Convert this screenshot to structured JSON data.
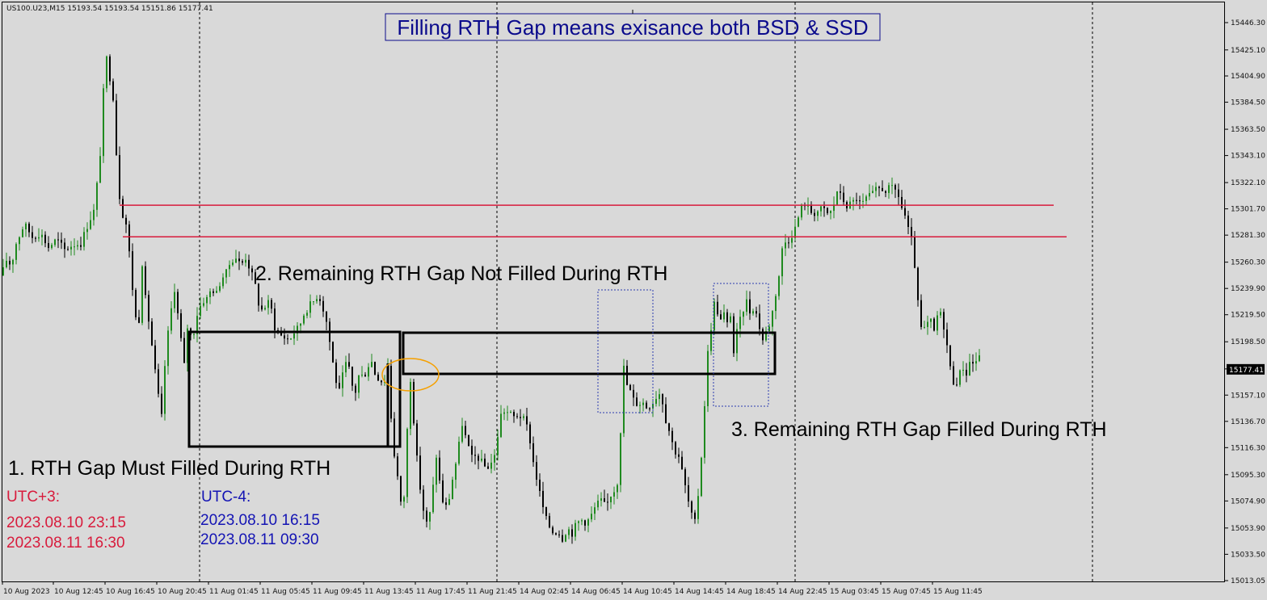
{
  "header": {
    "symbol_info": "US100.U23,M15  15193.54 15193.54 15151.86 15177.41"
  },
  "annotations": {
    "title": "Filling RTH Gap means exisance both BSD & SSD",
    "label1": "1. RTH Gap Must Filled During RTH",
    "label2": "2. Remaining RTH Gap Not Filled During RTH",
    "label3": "3. Remaining RTH Gap Filled During RTH"
  },
  "timezones": {
    "utc_plus3": {
      "label": "UTC+3:",
      "line1": "2023.08.10 23:15",
      "line2": "2023.08.11 16:30"
    },
    "utc_minus4": {
      "label": "UTC-4:",
      "line1": "2023.08.10 16:15",
      "line2": "2023.08.11 09:30"
    }
  },
  "colors": {
    "background": "#d9d9d9",
    "bull": "#1f8a1f",
    "bear": "#000000",
    "level_line": "#d81b3c",
    "title_text": "#0a0a8c",
    "utc_plus3": "#d81b3c",
    "utc_minus4": "#1414b4",
    "ellipse": "#f5a000",
    "dashed_box": "#2b3bb0"
  },
  "chart_data": {
    "type": "candlestick",
    "ylim": [
      15013.05,
      15446.3
    ],
    "y_ticks": [
      "15446.30",
      "15425.10",
      "15404.90",
      "15384.50",
      "15363.50",
      "15343.10",
      "15322.10",
      "15301.70",
      "15281.30",
      "15260.30",
      "15239.90",
      "15219.50",
      "15198.50",
      "15177.41",
      "15157.10",
      "15136.70",
      "15116.30",
      "15095.30",
      "15074.90",
      "15053.90",
      "15033.50",
      "15013.05"
    ],
    "x_ticks": [
      "10 Aug 2023",
      "10 Aug 12:45",
      "10 Aug 16:45",
      "10 Aug 20:45",
      "11 Aug 01:45",
      "11 Aug 05:45",
      "11 Aug 09:45",
      "11 Aug 13:45",
      "11 Aug 17:45",
      "11 Aug 21:45",
      "14 Aug 02:45",
      "14 Aug 06:45",
      "14 Aug 10:45",
      "14 Aug 14:45",
      "14 Aug 18:45",
      "14 Aug 22:45",
      "15 Aug 03:45",
      "15 Aug 07:45",
      "15 Aug 11:45"
    ],
    "current_price": "15177.41",
    "price_path": [
      [
        2,
        15250
      ],
      [
        8,
        15262
      ],
      [
        14,
        15258
      ],
      [
        20,
        15275
      ],
      [
        30,
        15290
      ],
      [
        40,
        15280
      ],
      [
        50,
        15283
      ],
      [
        60,
        15272
      ],
      [
        70,
        15278
      ],
      [
        80,
        15270
      ],
      [
        90,
        15274
      ],
      [
        100,
        15275
      ],
      [
        110,
        15292
      ],
      [
        116,
        15300
      ],
      [
        122,
        15330
      ],
      [
        126,
        15360
      ],
      [
        130,
        15425
      ],
      [
        133,
        15415
      ],
      [
        137,
        15400
      ],
      [
        141,
        15385
      ],
      [
        144,
        15345
      ],
      [
        147,
        15320
      ],
      [
        150,
        15295
      ],
      [
        154,
        15300
      ],
      [
        158,
        15280
      ],
      [
        162,
        15255
      ],
      [
        166,
        15225
      ],
      [
        171,
        15205
      ],
      [
        176,
        15260
      ],
      [
        181,
        15225
      ],
      [
        185,
        15212
      ],
      [
        190,
        15185
      ],
      [
        195,
        15160
      ],
      [
        200,
        15140
      ],
      [
        205,
        15190
      ],
      [
        211,
        15220
      ],
      [
        216,
        15240
      ],
      [
        222,
        15210
      ],
      [
        228,
        15180
      ],
      [
        232,
        15210
      ],
      [
        238,
        15200
      ],
      [
        244,
        15220
      ],
      [
        250,
        15230
      ],
      [
        256,
        15232
      ],
      [
        262,
        15240
      ],
      [
        268,
        15236
      ],
      [
        274,
        15248
      ],
      [
        280,
        15252
      ],
      [
        286,
        15262
      ],
      [
        292,
        15264
      ],
      [
        298,
        15258
      ],
      [
        304,
        15264
      ],
      [
        310,
        15254
      ],
      [
        316,
        15242
      ],
      [
        322,
        15222
      ],
      [
        328,
        15226
      ],
      [
        334,
        15230
      ],
      [
        340,
        15210
      ],
      [
        346,
        15204
      ],
      [
        352,
        15202
      ],
      [
        358,
        15200
      ],
      [
        364,
        15206
      ],
      [
        370,
        15210
      ],
      [
        376,
        15220
      ],
      [
        382,
        15226
      ],
      [
        388,
        15230
      ],
      [
        394,
        15236
      ],
      [
        400,
        15224
      ],
      [
        405,
        15212
      ],
      [
        410,
        15190
      ],
      [
        415,
        15170
      ],
      [
        420,
        15160
      ],
      [
        425,
        15175
      ],
      [
        430,
        15185
      ],
      [
        435,
        15165
      ],
      [
        440,
        15160
      ],
      [
        445,
        15175
      ],
      [
        450,
        15170
      ],
      [
        455,
        15180
      ],
      [
        460,
        15183
      ],
      [
        465,
        15172
      ],
      [
        470,
        15170
      ],
      [
        475,
        15166
      ],
      [
        480,
        15180
      ],
      [
        484,
        15140
      ],
      [
        487,
        15115
      ],
      [
        491,
        15100
      ],
      [
        495,
        15075
      ],
      [
        499,
        15065
      ],
      [
        503,
        15120
      ],
      [
        508,
        15170
      ],
      [
        513,
        15130
      ],
      [
        517,
        15100
      ],
      [
        521,
        15080
      ],
      [
        526,
        15060
      ],
      [
        530,
        15055
      ],
      [
        535,
        15080
      ],
      [
        540,
        15110
      ],
      [
        545,
        15085
      ],
      [
        550,
        15068
      ],
      [
        555,
        15074
      ],
      [
        560,
        15092
      ],
      [
        566,
        15110
      ],
      [
        572,
        15135
      ],
      [
        578,
        15120
      ],
      [
        584,
        15108
      ],
      [
        590,
        15110
      ],
      [
        596,
        15105
      ],
      [
        602,
        15100
      ],
      [
        608,
        15105
      ],
      [
        614,
        15112
      ],
      [
        618,
        15140
      ],
      [
        624,
        15145
      ],
      [
        630,
        15143
      ],
      [
        636,
        15140
      ],
      [
        642,
        15142
      ],
      [
        648,
        15138
      ],
      [
        654,
        15130
      ],
      [
        660,
        15105
      ],
      [
        665,
        15090
      ],
      [
        670,
        15075
      ],
      [
        675,
        15062
      ],
      [
        680,
        15055
      ],
      [
        685,
        15050
      ],
      [
        690,
        15052
      ],
      [
        696,
        15046
      ],
      [
        702,
        15054
      ],
      [
        708,
        15050
      ],
      [
        714,
        15058
      ],
      [
        720,
        15060
      ],
      [
        726,
        15058
      ],
      [
        732,
        15064
      ],
      [
        738,
        15072
      ],
      [
        744,
        15075
      ],
      [
        750,
        15070
      ],
      [
        756,
        15080
      ],
      [
        762,
        15085
      ],
      [
        766,
        15095
      ],
      [
        770,
        15165
      ],
      [
        773,
        15185
      ],
      [
        776,
        15165
      ],
      [
        780,
        15160
      ],
      [
        785,
        15152
      ],
      [
        790,
        15150
      ],
      [
        795,
        15152
      ],
      [
        800,
        15148
      ],
      [
        806,
        15150
      ],
      [
        812,
        15156
      ],
      [
        818,
        15160
      ],
      [
        823,
        15140
      ],
      [
        828,
        15130
      ],
      [
        834,
        15115
      ],
      [
        840,
        15110
      ],
      [
        845,
        15095
      ],
      [
        850,
        15080
      ],
      [
        855,
        15065
      ],
      [
        860,
        15058
      ],
      [
        864,
        15080
      ],
      [
        868,
        15110
      ],
      [
        872,
        15150
      ],
      [
        876,
        15190
      ],
      [
        880,
        15210
      ],
      [
        884,
        15228
      ],
      [
        888,
        15222
      ],
      [
        892,
        15215
      ],
      [
        896,
        15220
      ],
      [
        900,
        15212
      ],
      [
        904,
        15220
      ],
      [
        908,
        15190
      ],
      [
        912,
        15206
      ],
      [
        916,
        15215
      ],
      [
        920,
        15224
      ],
      [
        924,
        15230
      ],
      [
        928,
        15222
      ],
      [
        932,
        15225
      ],
      [
        936,
        15220
      ],
      [
        940,
        15210
      ],
      [
        944,
        15200
      ],
      [
        948,
        15206
      ],
      [
        952,
        15212
      ],
      [
        956,
        15222
      ],
      [
        960,
        15236
      ],
      [
        964,
        15250
      ],
      [
        968,
        15270
      ],
      [
        972,
        15276
      ],
      [
        976,
        15278
      ],
      [
        980,
        15282
      ],
      [
        985,
        15288
      ],
      [
        990,
        15300
      ],
      [
        995,
        15307
      ],
      [
        1000,
        15302
      ],
      [
        1006,
        15298
      ],
      [
        1012,
        15300
      ],
      [
        1018,
        15302
      ],
      [
        1024,
        15298
      ],
      [
        1030,
        15300
      ],
      [
        1036,
        15316
      ],
      [
        1042,
        15310
      ],
      [
        1048,
        15304
      ],
      [
        1054,
        15306
      ],
      [
        1060,
        15310
      ],
      [
        1066,
        15304
      ],
      [
        1072,
        15310
      ],
      [
        1078,
        15312
      ],
      [
        1084,
        15316
      ],
      [
        1090,
        15318
      ],
      [
        1096,
        15316
      ],
      [
        1102,
        15318
      ],
      [
        1108,
        15316
      ],
      [
        1112,
        15312
      ],
      [
        1117,
        15300
      ],
      [
        1121,
        15295
      ],
      [
        1125,
        15282
      ],
      [
        1129,
        15275
      ],
      [
        1133,
        15252
      ],
      [
        1137,
        15220
      ],
      [
        1141,
        15205
      ],
      [
        1146,
        15210
      ],
      [
        1151,
        15216
      ],
      [
        1156,
        15206
      ],
      [
        1161,
        15222
      ],
      [
        1166,
        15218
      ],
      [
        1171,
        15200
      ],
      [
        1176,
        15178
      ],
      [
        1181,
        15165
      ],
      [
        1186,
        15170
      ],
      [
        1191,
        15180
      ],
      [
        1196,
        15174
      ],
      [
        1201,
        15185
      ],
      [
        1206,
        15180
      ],
      [
        1211,
        15190
      ],
      [
        1214,
        15177.41
      ]
    ],
    "levels": [
      {
        "price": 15304.5,
        "x_from": 148,
        "x_to": 1304,
        "color": "#d81b3c"
      },
      {
        "price": 15280.0,
        "x_from": 152,
        "x_to": 1320,
        "color": "#d81b3c"
      }
    ]
  }
}
